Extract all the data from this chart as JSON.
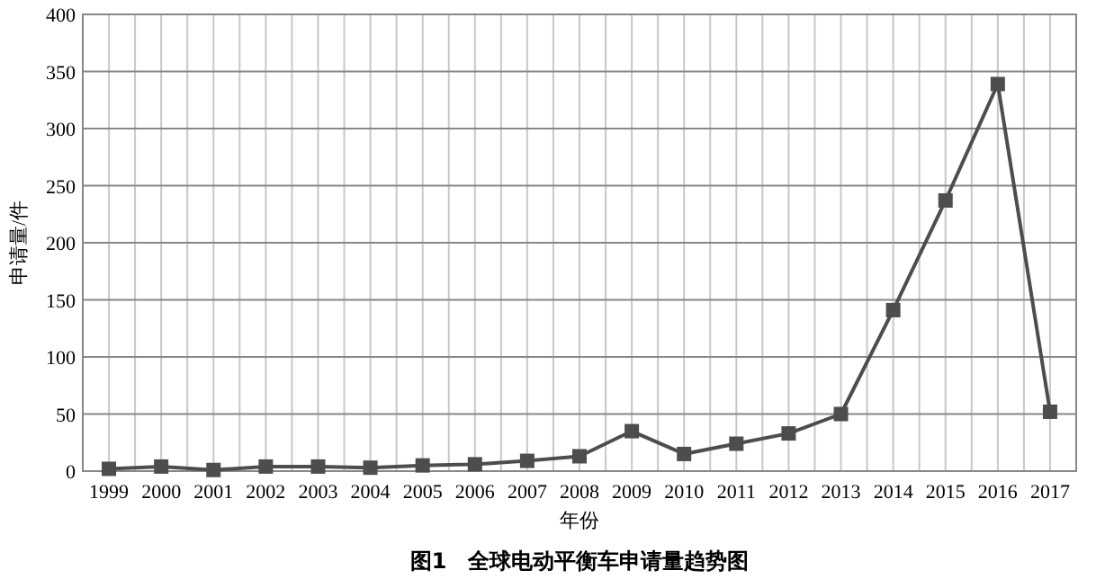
{
  "chart_data": {
    "type": "line",
    "title": "图1　全球电动平衡车申请量趋势图",
    "xlabel": "年份",
    "ylabel": "申请量/件",
    "categories": [
      "1999",
      "2000",
      "2001",
      "2002",
      "2003",
      "2004",
      "2005",
      "2006",
      "2007",
      "2008",
      "2009",
      "2010",
      "2011",
      "2012",
      "2013",
      "2014",
      "2015",
      "2016",
      "2017"
    ],
    "series": [
      {
        "color": "#4d4d4d",
        "values": [
          2,
          4,
          1,
          4,
          4,
          3,
          5,
          6,
          9,
          13,
          35,
          15,
          24,
          33,
          50,
          141,
          237,
          339,
          52
        ]
      }
    ],
    "ylim": [
      0,
      400
    ],
    "yticks": [
      0,
      50,
      100,
      150,
      200,
      250,
      300,
      350,
      400
    ],
    "grid": true,
    "marker": "square",
    "line_style": "solid"
  }
}
